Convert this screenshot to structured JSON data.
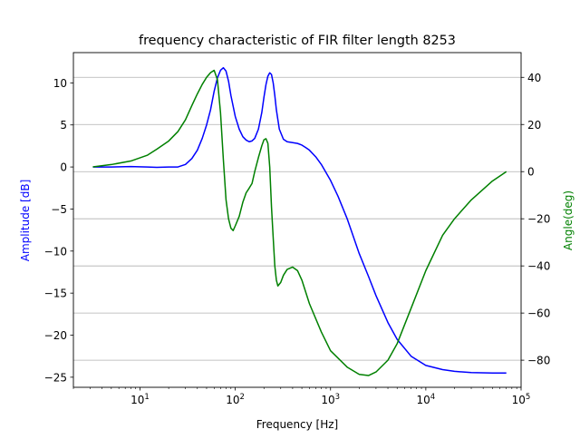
{
  "chart_data": {
    "type": "line",
    "title": "frequency characteristic of FIR filter length 8253",
    "xlabel": "Frequency [Hz]",
    "x_scale": "log",
    "xlim": [
      2,
      100000
    ],
    "x_ticks": [
      10,
      100,
      1000,
      10000,
      100000
    ],
    "x_tick_labels": [
      "10^1",
      "10^2",
      "10^3",
      "10^4",
      "10^5"
    ],
    "left_axis": {
      "label": "Amplitude [dB]",
      "color": "#0000ff",
      "ylim": [
        -26.2,
        13.6
      ],
      "ticks": [
        -25,
        -20,
        -15,
        -10,
        -5,
        0,
        5,
        10
      ],
      "tick_labels": [
        "−25",
        "−20",
        "−15",
        "−10",
        "−5",
        "0",
        "5",
        "10"
      ]
    },
    "right_axis": {
      "label": "Angle(deg)",
      "color": "#008000",
      "ylim": [
        -91.5,
        50.5
      ],
      "ticks": [
        -80,
        -60,
        -40,
        -20,
        0,
        20,
        40
      ],
      "tick_labels": [
        "−80",
        "−60",
        "−40",
        "−20",
        "0",
        "20",
        "40"
      ]
    },
    "grid": "horizontal, right axis",
    "series": [
      {
        "axis": "left",
        "color": "#0000ff",
        "x": [
          3.2,
          5,
          8,
          12,
          15,
          20,
          25,
          30,
          35,
          40,
          45,
          50,
          55,
          60,
          65,
          70,
          75,
          80,
          85,
          90,
          100,
          110,
          120,
          130,
          140,
          150,
          160,
          175,
          190,
          200,
          210,
          220,
          230,
          240,
          250,
          260,
          270,
          290,
          320,
          350,
          400,
          450,
          500,
          550,
          600,
          700,
          800,
          1000,
          1200,
          1500,
          2000,
          2500,
          3000,
          4000,
          5000,
          7000,
          10000,
          15000,
          20000,
          30000,
          50000,
          70000
        ],
        "y": [
          0,
          0,
          0.05,
          0,
          -0.05,
          0,
          0,
          0.3,
          1.0,
          2.0,
          3.4,
          5.0,
          6.8,
          9.0,
          10.6,
          11.5,
          11.8,
          11.4,
          10.2,
          8.5,
          6.0,
          4.5,
          3.6,
          3.2,
          3.0,
          3.1,
          3.4,
          4.5,
          6.5,
          8.3,
          9.8,
          10.8,
          11.2,
          11.0,
          10.0,
          8.5,
          6.8,
          4.5,
          3.3,
          3.0,
          2.9,
          2.8,
          2.6,
          2.3,
          2.0,
          1.2,
          0.3,
          -1.6,
          -3.5,
          -6.2,
          -10.3,
          -13.0,
          -15.3,
          -18.5,
          -20.5,
          -22.5,
          -23.6,
          -24.1,
          -24.3,
          -24.45,
          -24.5,
          -24.5
        ]
      },
      {
        "axis": "right",
        "color": "#008000",
        "x": [
          3.2,
          5,
          8,
          12,
          15,
          20,
          25,
          30,
          35,
          40,
          45,
          50,
          55,
          60,
          65,
          70,
          75,
          80,
          85,
          90,
          95,
          100,
          110,
          120,
          130,
          140,
          150,
          160,
          175,
          190,
          200,
          210,
          220,
          230,
          240,
          250,
          260,
          270,
          280,
          300,
          320,
          350,
          400,
          450,
          500,
          600,
          800,
          1000,
          1500,
          2000,
          2500,
          3000,
          4000,
          5000,
          7000,
          10000,
          15000,
          20000,
          30000,
          50000,
          70000
        ],
        "y": [
          2,
          3,
          4.5,
          7,
          9.5,
          13,
          17,
          22,
          28,
          33,
          37,
          40,
          42,
          43,
          39,
          25,
          5,
          -12,
          -20,
          -24,
          -25,
          -23,
          -19,
          -13,
          -9,
          -7,
          -5,
          0,
          6,
          11,
          13.5,
          14,
          12,
          2,
          -15,
          -28,
          -40,
          -46,
          -48.5,
          -47,
          -44,
          -41.5,
          -40.5,
          -42,
          -46,
          -56,
          -68,
          -76,
          -83,
          -86,
          -86.5,
          -85,
          -80,
          -73,
          -58,
          -42,
          -27,
          -20,
          -12,
          -4,
          0
        ]
      }
    ]
  }
}
